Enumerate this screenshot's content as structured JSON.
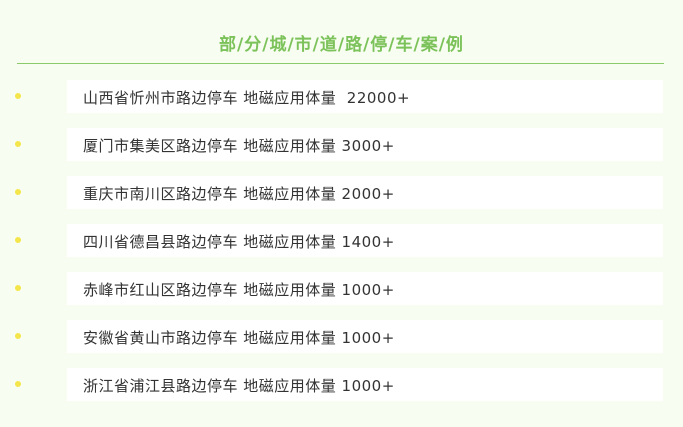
{
  "title": "部/分/城/市/道/路/停/车/案/例",
  "colors": {
    "title": "#7cc25a",
    "bullet": "#f4e64a",
    "background": "#f7fdf0"
  },
  "items": [
    "山西省忻州市路边停车 地磁应用体量  22000+",
    "厦门市集美区路边停车 地磁应用体量 3000+",
    "重庆市南川区路边停车 地磁应用体量 2000+",
    "四川省德昌县路边停车 地磁应用体量 1400+",
    "赤峰市红山区路边停车 地磁应用体量 1000+",
    "安徽省黄山市路边停车 地磁应用体量 1000+",
    "浙江省浦江县路边停车 地磁应用体量 1000+"
  ]
}
